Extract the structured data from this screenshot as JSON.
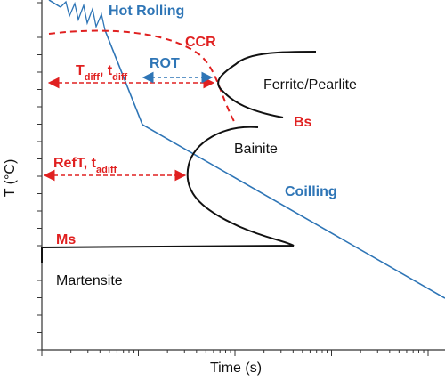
{
  "labels": {
    "hot_rolling": "Hot Rolling",
    "ccr": "CCR",
    "rot": "ROT",
    "tdiff": [
      {
        "text": "T"
      },
      {
        "text": "diff",
        "sub": true
      },
      {
        "text": ", t"
      },
      {
        "text": "diff",
        "sub": true
      }
    ],
    "reft": [
      {
        "text": "RefT, t"
      },
      {
        "text": "adiff",
        "sub": true
      }
    ],
    "ferrite_pearlite": "Ferrite/Pearlite",
    "bs": "Bs",
    "bainite": "Bainite",
    "coilling": "Coilling",
    "ms": "Ms",
    "martensite": "Martensite"
  },
  "axes": {
    "y_label": "T (°C)",
    "x_label": "Time (s)"
  }
}
